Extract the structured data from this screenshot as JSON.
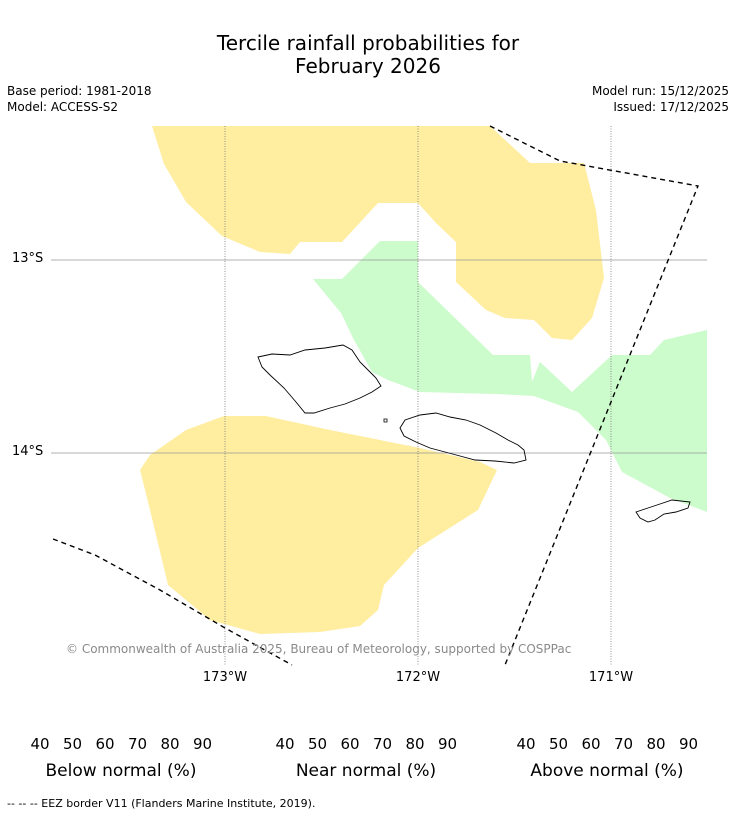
{
  "title_line1": "Tercile rainfall probabilities for",
  "title_line2": "February 2026",
  "base_period": "Base period: 1981-2018",
  "model": "Model: ACCESS-S2",
  "model_run": "Model run: 15/12/2025",
  "issued": "Issued: 17/12/2025",
  "copyright": "© Commonwealth of Australia 2025, Bureau of Meteorology, supported by COSPPac",
  "lat_labels": [
    "13°S",
    "14°S"
  ],
  "lon_labels": [
    "173°W",
    "172°W",
    "171°W"
  ],
  "regions": {
    "below_normal": {
      "category": "Below normal",
      "probability_band": "40-50",
      "color": "#ffeda0"
    },
    "above_normal": {
      "category": "Above normal",
      "probability_band": "40-50",
      "color": "#ccfbcc"
    }
  },
  "colorbars": [
    {
      "label": "Below normal (%)",
      "ticks": [
        "40",
        "50",
        "60",
        "70",
        "80",
        "90"
      ],
      "colors": [
        "#ffeda0",
        "#fed06a",
        "#e3994a",
        "#cd6332",
        "#b44c2a",
        "#923424"
      ]
    },
    {
      "label": "Near normal (%)",
      "ticks": [
        "40",
        "50",
        "60",
        "70",
        "80",
        "90"
      ],
      "colors": [
        "#e9e9e9",
        "#d9d9d9",
        "#c6c6c6",
        "#b2b2b2",
        "#9f9f9f",
        "#868686"
      ]
    },
    {
      "label": "Above normal (%)",
      "ticks": [
        "40",
        "50",
        "60",
        "70",
        "80",
        "90"
      ],
      "colors": [
        "#ccfbcc",
        "#a5d6ba",
        "#81b6b0",
        "#5b94a4",
        "#336898",
        "#1b4f88"
      ]
    }
  ],
  "footer": "--  --  -- EEZ border V11 (Flanders Marine Institute, 2019)."
}
